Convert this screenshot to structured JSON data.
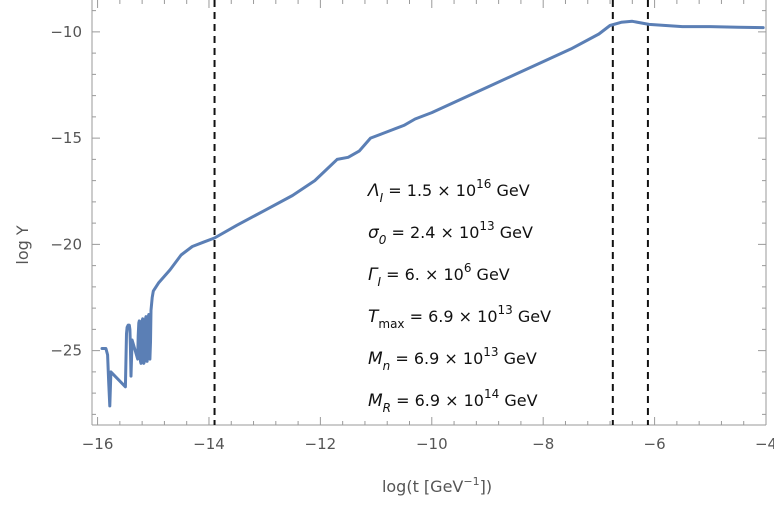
{
  "chart_data": {
    "type": "line",
    "xlabel_base": "log(t [GeV",
    "xlabel_exp": "−1",
    "xlabel_tail": "])",
    "ylabel": "log Y",
    "xlim": [
      -16.1,
      -4
    ],
    "ylim": [
      -28.5,
      -8.5
    ],
    "x_ticks": [
      -16,
      -14,
      -12,
      -10,
      -8,
      -6,
      -4
    ],
    "x_tick_labels": [
      "−16",
      "−14",
      "−12",
      "−10",
      "−8",
      "−6",
      "−4"
    ],
    "y_ticks": [
      -25,
      -20,
      -15,
      -10
    ],
    "y_tick_labels": [
      "−25",
      "−20",
      "−15",
      "−10"
    ],
    "grid": false,
    "vlines": [
      -13.9,
      -6.75,
      -6.12
    ],
    "line_color": "#5b7fb5",
    "series": [
      {
        "x": [
          -15.92,
          -15.85,
          -15.82,
          -15.8,
          -15.78,
          -15.76,
          -15.5,
          -15.48,
          -15.47,
          -15.45,
          -15.43,
          -15.42,
          -15.41,
          -15.4,
          -15.38,
          -15.28,
          -15.27,
          -15.26,
          -15.25,
          -15.24,
          -15.23,
          -15.22,
          -15.21,
          -15.2,
          -15.19,
          -15.18,
          -15.17,
          -15.16,
          -15.15,
          -15.14,
          -15.13,
          -15.12,
          -15.11,
          -15.1,
          -15.09,
          -15.08,
          -15.07,
          -15.06,
          -15.05,
          -15.04,
          -15.02,
          -15.0,
          -14.9,
          -14.7,
          -14.5,
          -14.3,
          -14.1,
          -13.9,
          -13.5,
          -13.0,
          -12.5,
          -12.1,
          -11.9,
          -11.7,
          -11.5,
          -11.3,
          -11.1,
          -10.9,
          -10.7,
          -10.5,
          -10.3,
          -10.0,
          -9.5,
          -9.0,
          -8.5,
          -8.0,
          -7.5,
          -7.0,
          -6.8,
          -6.6,
          -6.4,
          -6.2,
          -6.1,
          -5.8,
          -5.5,
          -5.0,
          -4.5,
          -4.05
        ],
        "y": [
          -24.9,
          -24.9,
          -25.2,
          -26.5,
          -27.6,
          -26.0,
          -26.7,
          -24.2,
          -23.9,
          -23.8,
          -23.8,
          -24.0,
          -24.8,
          -26.2,
          -24.5,
          -25.4,
          -24.3,
          -23.7,
          -23.6,
          -24.1,
          -25.5,
          -25.6,
          -24.3,
          -23.6,
          -23.5,
          -24.0,
          -25.6,
          -25.5,
          -24.0,
          -23.5,
          -23.4,
          -24.2,
          -25.5,
          -24.8,
          -23.4,
          -23.3,
          -23.8,
          -25.4,
          -24.6,
          -23.1,
          -22.5,
          -22.2,
          -21.8,
          -21.2,
          -20.5,
          -20.1,
          -19.9,
          -19.7,
          -19.1,
          -18.4,
          -17.7,
          -17.0,
          -16.5,
          -16.0,
          -15.9,
          -15.6,
          -15.0,
          -14.8,
          -14.6,
          -14.4,
          -14.1,
          -13.8,
          -13.2,
          -12.6,
          -12.0,
          -11.4,
          -10.8,
          -10.1,
          -9.7,
          -9.55,
          -9.5,
          -9.6,
          -9.65,
          -9.7,
          -9.75,
          -9.75,
          -9.78,
          -9.8
        ]
      }
    ],
    "annotations": [
      {
        "sym": "Λ",
        "sub": "I",
        "val": " = 1.5 × 10",
        "exp": "16",
        "unit": " GeV"
      },
      {
        "sym": "σ",
        "sub": "0",
        "val": " = 2.4 × 10",
        "exp": "13",
        "unit": " GeV"
      },
      {
        "sym": "Γ",
        "sub": "I",
        "val": " = 6. × 10",
        "exp": "6",
        "unit": " GeV"
      },
      {
        "sym": "T",
        "sub": "max",
        "val": " = 6.9 × 10",
        "exp": "13",
        "unit": " GeV"
      },
      {
        "sym": "M",
        "sub": "n",
        "val": " = 6.9 × 10",
        "exp": "13",
        "unit": " GeV"
      },
      {
        "sym": "M",
        "sub": "R",
        "val": " = 6.9 × 10",
        "exp": "14",
        "unit": " GeV"
      }
    ]
  }
}
